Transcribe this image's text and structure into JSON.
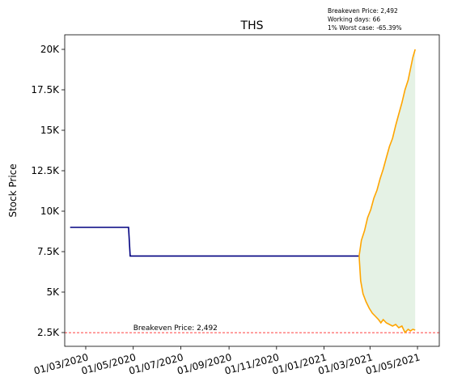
{
  "chart_data": {
    "type": "line",
    "title": "THS",
    "xlabel": "",
    "ylabel": "Stock Price",
    "x_ticks": [
      "01/03/2020",
      "01/05/2020",
      "01/07/2020",
      "01/09/2020",
      "01/11/2020",
      "01/01/2021",
      "01/03/2021",
      "01/05/2021"
    ],
    "y_ticks": [
      {
        "value": 2500,
        "label": "2.5K"
      },
      {
        "value": 5000,
        "label": "5K"
      },
      {
        "value": 7500,
        "label": "7.5K"
      },
      {
        "value": 10000,
        "label": "10K"
      },
      {
        "value": 12500,
        "label": "12.5K"
      },
      {
        "value": 15000,
        "label": "15K"
      },
      {
        "value": 17500,
        "label": "17.5K"
      },
      {
        "value": 20000,
        "label": "20K"
      }
    ],
    "xlim": [
      "2020-02-03",
      "2021-05-29"
    ],
    "ylim": [
      1650,
      20900
    ],
    "grid": false,
    "historical": {
      "color": "#000080",
      "points": [
        [
          "2020-02-10",
          9000
        ],
        [
          "2020-04-25",
          9000
        ],
        [
          "2020-04-27",
          7230
        ],
        [
          "2021-02-15",
          7230
        ]
      ]
    },
    "projection": {
      "upper_color": "#ffa500",
      "lower_color": "#ffa500",
      "fill_color": "#e5f2e5",
      "upper": [
        [
          "2021-02-15",
          7230
        ],
        [
          "2021-02-18",
          8200
        ],
        [
          "2021-02-22",
          8800
        ],
        [
          "2021-02-26",
          9600
        ],
        [
          "2021-03-02",
          10100
        ],
        [
          "2021-03-06",
          10800
        ],
        [
          "2021-03-10",
          11300
        ],
        [
          "2021-03-14",
          12000
        ],
        [
          "2021-03-18",
          12600
        ],
        [
          "2021-03-22",
          13300
        ],
        [
          "2021-03-26",
          14000
        ],
        [
          "2021-03-30",
          14500
        ],
        [
          "2021-04-03",
          15300
        ],
        [
          "2021-04-07",
          16000
        ],
        [
          "2021-04-11",
          16700
        ],
        [
          "2021-04-15",
          17500
        ],
        [
          "2021-04-19",
          18100
        ],
        [
          "2021-04-22",
          18800
        ],
        [
          "2021-04-25",
          19500
        ],
        [
          "2021-04-28",
          20000
        ]
      ],
      "lower": [
        [
          "2021-02-15",
          7230
        ],
        [
          "2021-02-17",
          5700
        ],
        [
          "2021-02-20",
          4900
        ],
        [
          "2021-02-24",
          4400
        ],
        [
          "2021-02-28",
          4000
        ],
        [
          "2021-03-04",
          3700
        ],
        [
          "2021-03-08",
          3500
        ],
        [
          "2021-03-12",
          3300
        ],
        [
          "2021-03-15",
          3100
        ],
        [
          "2021-03-18",
          3300
        ],
        [
          "2021-03-22",
          3100
        ],
        [
          "2021-03-26",
          3000
        ],
        [
          "2021-03-30",
          2900
        ],
        [
          "2021-04-03",
          3000
        ],
        [
          "2021-04-07",
          2800
        ],
        [
          "2021-04-11",
          2900
        ],
        [
          "2021-04-15",
          2500
        ],
        [
          "2021-04-19",
          2700
        ],
        [
          "2021-04-22",
          2600
        ],
        [
          "2021-04-25",
          2700
        ],
        [
          "2021-04-28",
          2650
        ]
      ]
    },
    "breakeven": {
      "value": 2492,
      "label": "Breakeven Price: 2,492",
      "color": "#ff0000"
    },
    "annotations": [
      "Breakeven Price: 2,492",
      "Working days: 66",
      "1% Worst case: -65.39%"
    ]
  }
}
